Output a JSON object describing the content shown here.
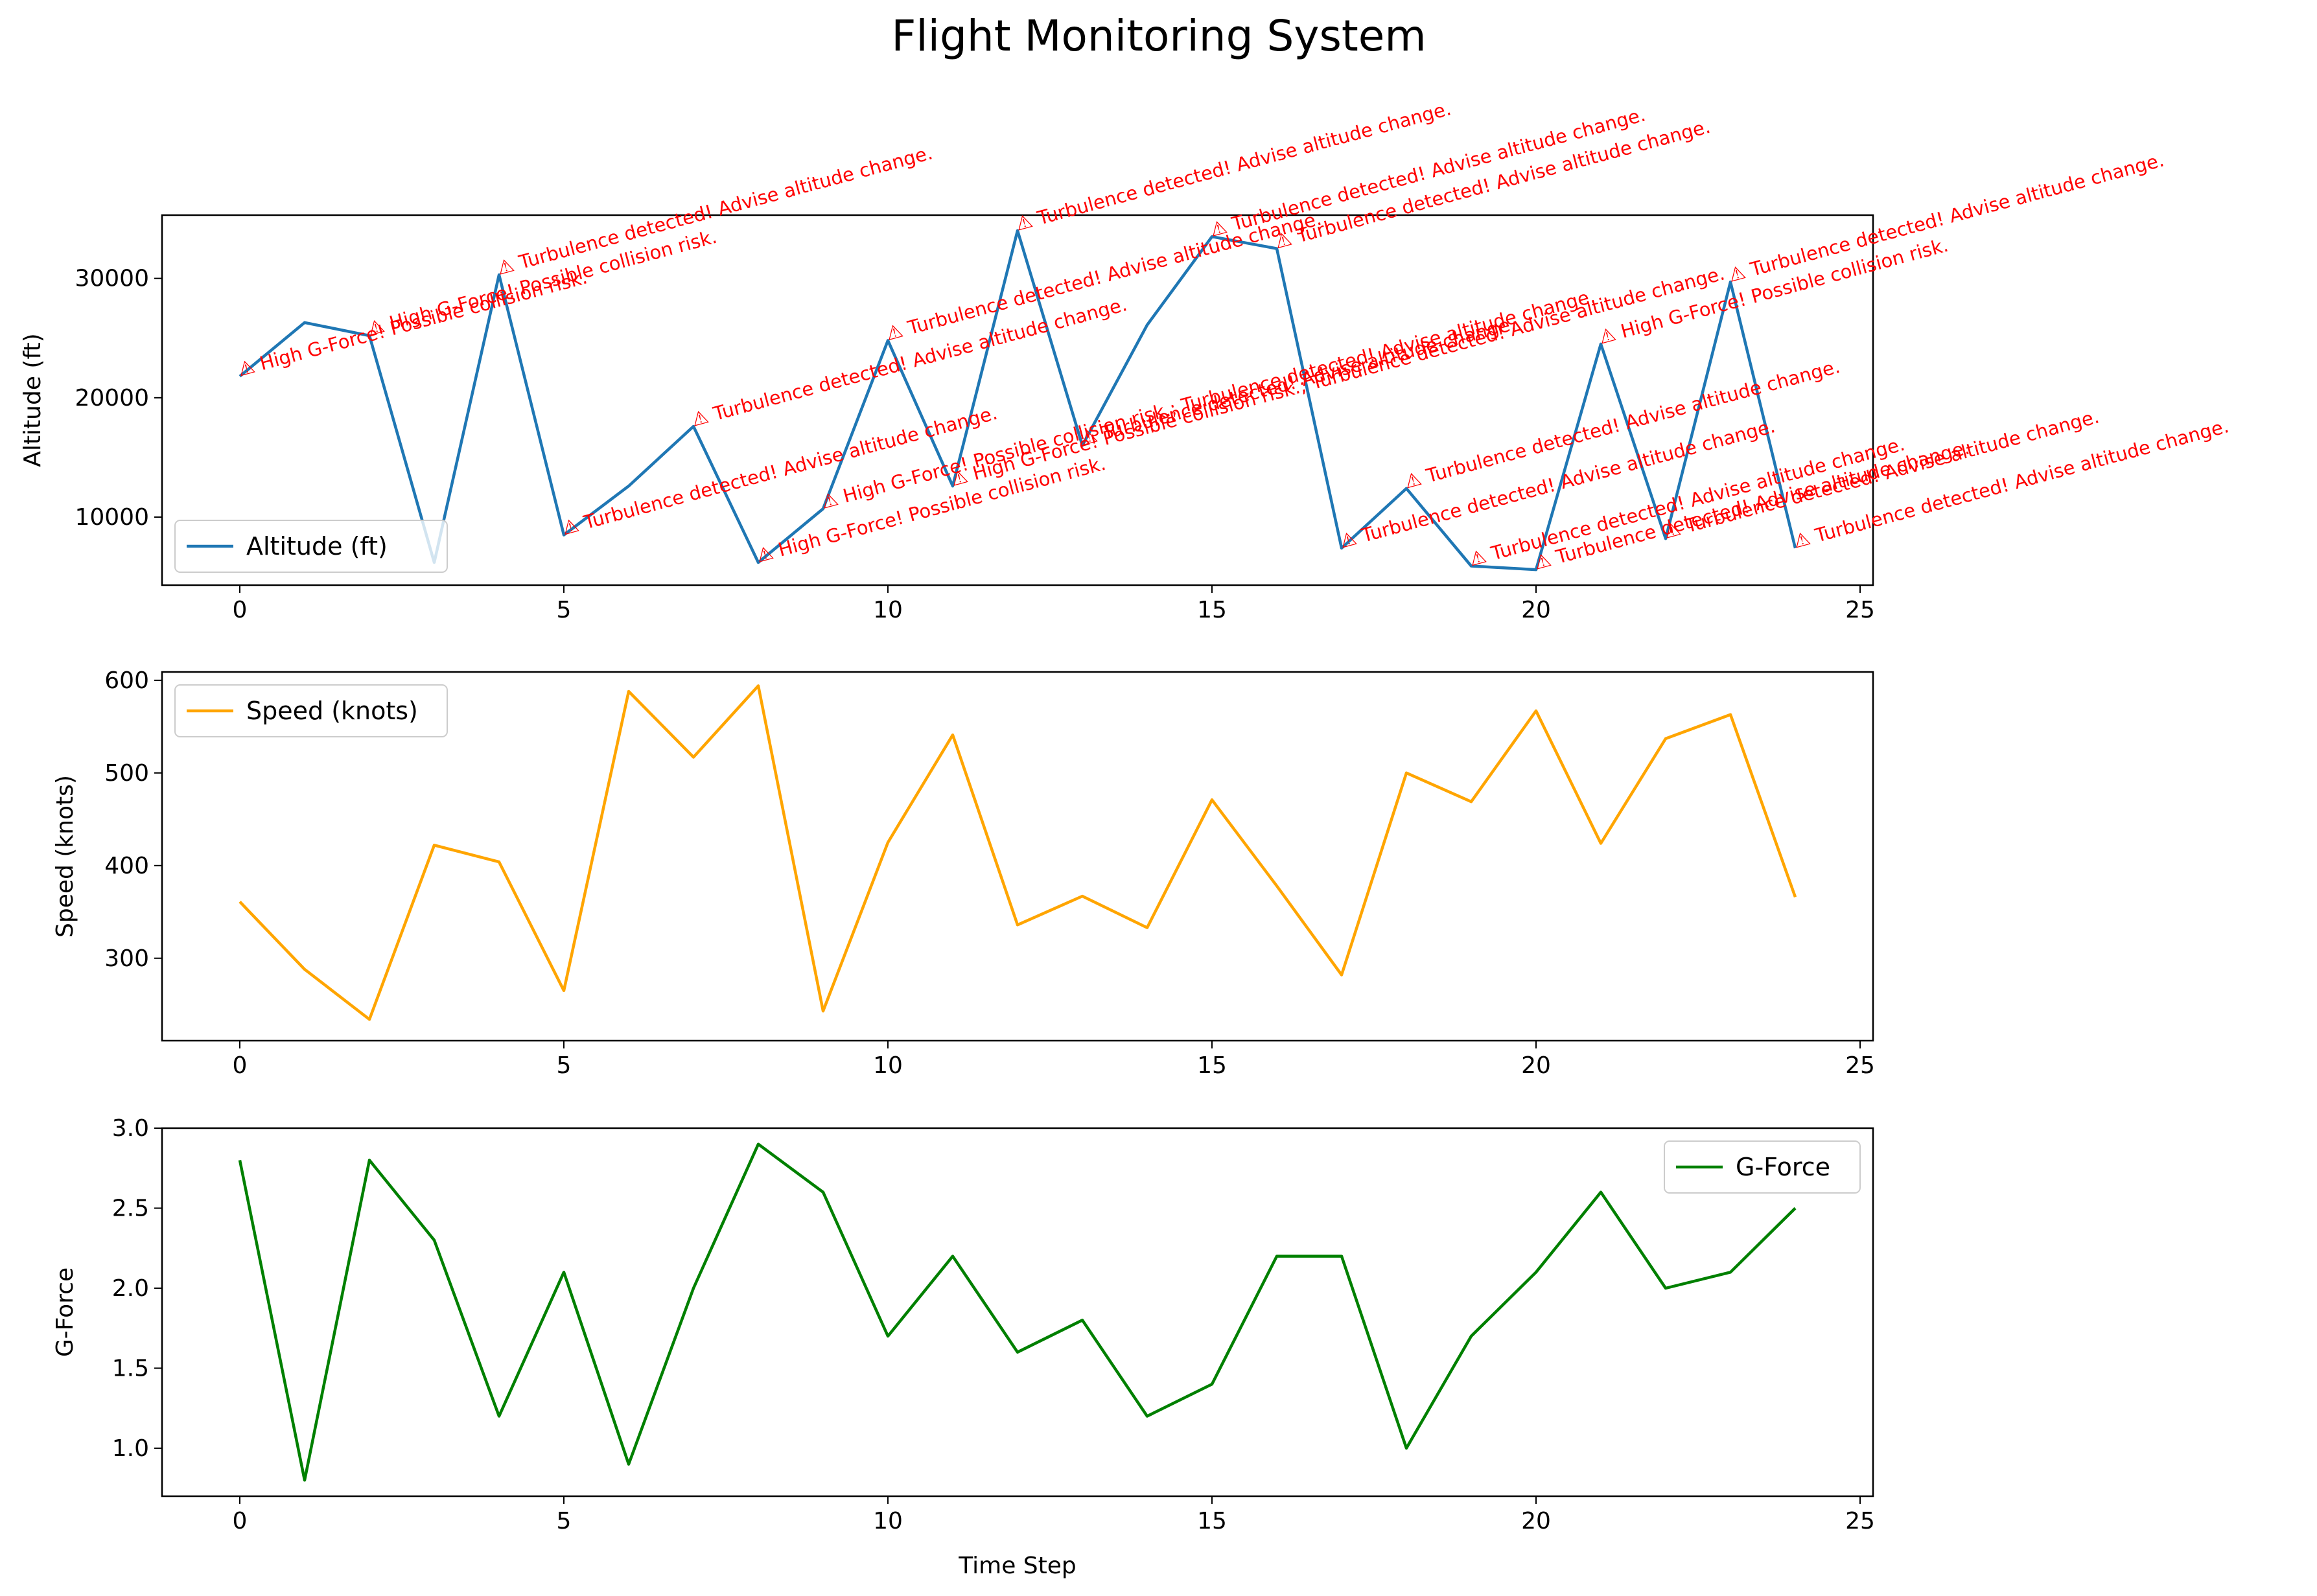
{
  "figure": {
    "title": "Flight Monitoring System",
    "xlabel": "Time Step"
  },
  "colors": {
    "altitude": "#1f77b4",
    "speed": "#ffa500",
    "gforce": "#008000",
    "annotation": "#ff0000",
    "axes": "#000000"
  },
  "chart_data": [
    {
      "type": "line",
      "name": "altitude",
      "ylabel": "Altitude (ft)",
      "legend": "Altitude (ft)",
      "legend_position": "lower-left",
      "xlim": [
        -1.2,
        25.2
      ],
      "ylim": [
        4300,
        35300
      ],
      "xticks": [
        0,
        5,
        10,
        15,
        20,
        25
      ],
      "yticks": [
        10000,
        20000,
        30000
      ],
      "x": [
        0,
        1,
        2,
        3,
        4,
        5,
        6,
        7,
        8,
        9,
        10,
        11,
        12,
        13,
        14,
        15,
        16,
        17,
        18,
        19,
        20,
        21,
        22,
        23,
        24
      ],
      "values": [
        21800,
        26300,
        25200,
        6200,
        30300,
        8500,
        12600,
        17600,
        6200,
        10700,
        24800,
        12600,
        34000,
        16000,
        26100,
        33500,
        32500,
        7400,
        12400,
        5900,
        5600,
        24500,
        8200,
        29700,
        7400
      ],
      "annotations": [
        {
          "x": 0,
          "text": "⚠ High G-Force! Possible collision risk."
        },
        {
          "x": 2,
          "text": "⚠ High G-Force! Possible collision risk."
        },
        {
          "x": 4,
          "text": "⚠ Turbulence detected! Advise altitude change."
        },
        {
          "x": 5,
          "text": "⚠ Turbulence detected! Advise altitude change."
        },
        {
          "x": 7,
          "text": "⚠ Turbulence detected! Advise altitude change."
        },
        {
          "x": 8,
          "text": "⚠ High G-Force! Possible collision risk."
        },
        {
          "x": 9,
          "text": "⚠ High G-Force! Possible collision risk.; Turbulence detected! Advise altitude change."
        },
        {
          "x": 10,
          "text": "⚠ Turbulence detected! Advise altitude change."
        },
        {
          "x": 11,
          "text": "⚠ High G-Force! Possible collision risk.; Turbulence detected! Advise altitude change."
        },
        {
          "x": 12,
          "text": "⚠ Turbulence detected! Advise altitude change."
        },
        {
          "x": 13,
          "text": "⚠ Turbulence detected! Advise altitude change."
        },
        {
          "x": 15,
          "text": "⚠ Turbulence detected! Advise altitude change."
        },
        {
          "x": 16,
          "text": "⚠ Turbulence detected! Advise altitude change."
        },
        {
          "x": 17,
          "text": "⚠ Turbulence detected! Advise altitude change."
        },
        {
          "x": 18,
          "text": "⚠ Turbulence detected! Advise altitude change."
        },
        {
          "x": 19,
          "text": "⚠ Turbulence detected! Advise altitude change."
        },
        {
          "x": 20,
          "text": "⚠ Turbulence detected! Advise altitude change."
        },
        {
          "x": 21,
          "text": "⚠ High G-Force! Possible collision risk."
        },
        {
          "x": 22,
          "text": "⚠ Turbulence detected! Advise altitude change."
        },
        {
          "x": 23,
          "text": "⚠ Turbulence detected! Advise altitude change."
        },
        {
          "x": 24,
          "text": "⚠ Turbulence detected! Advise altitude change."
        }
      ]
    },
    {
      "type": "line",
      "name": "speed",
      "ylabel": "Speed (knots)",
      "legend": "Speed (knots)",
      "legend_position": "upper-left",
      "xlim": [
        -1.2,
        25.2
      ],
      "ylim": [
        211,
        609
      ],
      "xticks": [
        0,
        5,
        10,
        15,
        20,
        25
      ],
      "yticks": [
        300,
        400,
        500,
        600
      ],
      "x": [
        0,
        1,
        2,
        3,
        4,
        5,
        6,
        7,
        8,
        9,
        10,
        11,
        12,
        13,
        14,
        15,
        16,
        17,
        18,
        19,
        20,
        21,
        22,
        23,
        24
      ],
      "values": [
        361,
        288,
        234,
        422,
        404,
        265,
        588,
        517,
        594,
        243,
        425,
        541,
        336,
        367,
        333,
        471,
        378,
        282,
        500,
        469,
        567,
        424,
        537,
        563,
        366
      ]
    },
    {
      "type": "line",
      "name": "gforce",
      "ylabel": "G-Force",
      "legend": "G-Force",
      "legend_position": "upper-right",
      "xlim": [
        -1.2,
        25.2
      ],
      "ylim": [
        0.7,
        3.0
      ],
      "xticks": [
        0,
        5,
        10,
        15,
        20,
        25
      ],
      "yticks": [
        1.0,
        1.5,
        2.0,
        2.5,
        3.0
      ],
      "x": [
        0,
        1,
        2,
        3,
        4,
        5,
        6,
        7,
        8,
        9,
        10,
        11,
        12,
        13,
        14,
        15,
        16,
        17,
        18,
        19,
        20,
        21,
        22,
        23,
        24
      ],
      "values": [
        2.8,
        0.8,
        2.8,
        2.3,
        1.2,
        2.1,
        0.9,
        2.0,
        2.9,
        2.6,
        1.7,
        2.2,
        1.6,
        1.8,
        1.2,
        1.4,
        2.2,
        2.2,
        1.0,
        1.7,
        2.1,
        2.6,
        2.0,
        2.1,
        2.5
      ]
    }
  ]
}
